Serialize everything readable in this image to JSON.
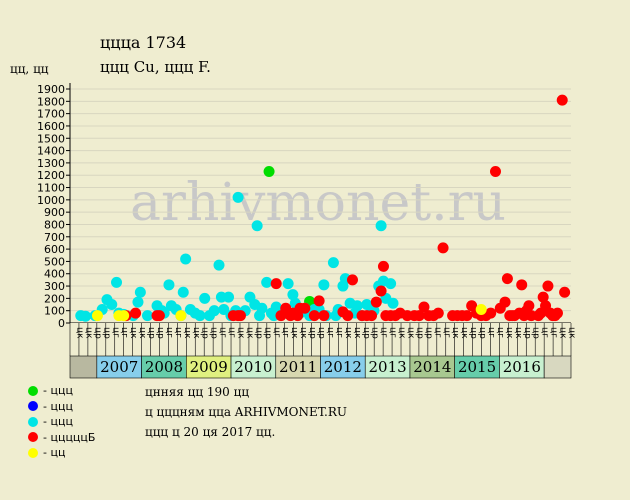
{
  "header": {
    "title": "ццца 1734",
    "subtitle": "ццц Cu, ццц F.",
    "ylabel": "цц, цц"
  },
  "info": {
    "line1": "цнняя цц 190 цц",
    "line2": "ц цццням цца ARHIVMONET.RU",
    "line3": "ццц ц 20 ця 2017 цц."
  },
  "legend": [
    {
      "label": "- ццц",
      "color": "#00dd00"
    },
    {
      "label": "- ццц",
      "color": "#0000ff"
    },
    {
      "label": "- ццц",
      "color": "#00e5e5"
    },
    {
      "label": "- цццццБ",
      "color": "#ff0000"
    },
    {
      "label": "- цц",
      "color": "#ffff00"
    }
  ],
  "watermark": "arhivmonet.ru",
  "chart_data": {
    "type": "scatter",
    "ylim": [
      0,
      1900
    ],
    "yticks": [
      0,
      100,
      200,
      300,
      400,
      500,
      600,
      700,
      800,
      900,
      1000,
      1100,
      1200,
      1300,
      1400,
      1500,
      1600,
      1700,
      1800,
      1900
    ],
    "grid": true,
    "years": [
      {
        "label": "2007",
        "color": "#87ceeb"
      },
      {
        "label": "2008",
        "color": "#66cdaa"
      },
      {
        "label": "2009",
        "color": "#e0f080"
      },
      {
        "label": "2010",
        "color": "#c8f0d0"
      },
      {
        "label": "2011",
        "color": "#d8d8b0"
      },
      {
        "label": "2012",
        "color": "#87ceeb"
      },
      {
        "label": "2013",
        "color": "#c8f0d0"
      },
      {
        "label": "2014",
        "color": "#a8c890"
      },
      {
        "label": "2015",
        "color": "#66cdaa"
      },
      {
        "label": "2016",
        "color": "#c8f0d0"
      }
    ],
    "month_labels": [
      "цк",
      "цк",
      "цр",
      "цр",
      "цг",
      "цг",
      "цк",
      "цк",
      "цр",
      "цр",
      "цг",
      "цг",
      "цк",
      "цк",
      "цр",
      "цр",
      "цг",
      "цг",
      "цк",
      "цк",
      "цр",
      "цр",
      "цг",
      "цг",
      "цк",
      "цк",
      "цр",
      "цр",
      "цг",
      "цг",
      "цк",
      "цк",
      "цр",
      "цр",
      "цг",
      "цг",
      "цк",
      "цк",
      "цр",
      "цр",
      "цг",
      "цг",
      "цк",
      "цк",
      "цр",
      "цр",
      "цг",
      "цг",
      "цк",
      "цк",
      "цр",
      "цр",
      "цг",
      "цг",
      "цк",
      "цк"
    ],
    "series": [
      {
        "color": "#00dd00",
        "points": [
          [
            0.405,
            1230
          ],
          [
            0.49,
            175
          ]
        ]
      },
      {
        "color": "#0000ff",
        "points": []
      },
      {
        "color": "#00e5e5",
        "points": [
          [
            0.01,
            60
          ],
          [
            0.02,
            55
          ],
          [
            0.04,
            60
          ],
          [
            0.055,
            110
          ],
          [
            0.065,
            190
          ],
          [
            0.075,
            150
          ],
          [
            0.085,
            330
          ],
          [
            0.09,
            80
          ],
          [
            0.1,
            70
          ],
          [
            0.12,
            60
          ],
          [
            0.13,
            170
          ],
          [
            0.135,
            250
          ],
          [
            0.15,
            60
          ],
          [
            0.17,
            140
          ],
          [
            0.18,
            100
          ],
          [
            0.185,
            80
          ],
          [
            0.195,
            310
          ],
          [
            0.2,
            140
          ],
          [
            0.21,
            110
          ],
          [
            0.22,
            60
          ],
          [
            0.225,
            250
          ],
          [
            0.23,
            520
          ],
          [
            0.24,
            110
          ],
          [
            0.25,
            80
          ],
          [
            0.26,
            60
          ],
          [
            0.27,
            200
          ],
          [
            0.28,
            60
          ],
          [
            0.29,
            100
          ],
          [
            0.3,
            470
          ],
          [
            0.305,
            210
          ],
          [
            0.31,
            110
          ],
          [
            0.32,
            210
          ],
          [
            0.325,
            60
          ],
          [
            0.335,
            100
          ],
          [
            0.34,
            1020
          ],
          [
            0.345,
            80
          ],
          [
            0.355,
            100
          ],
          [
            0.365,
            210
          ],
          [
            0.375,
            150
          ],
          [
            0.38,
            790
          ],
          [
            0.385,
            60
          ],
          [
            0.39,
            120
          ],
          [
            0.4,
            330
          ],
          [
            0.41,
            80
          ],
          [
            0.415,
            60
          ],
          [
            0.42,
            130
          ],
          [
            0.43,
            100
          ],
          [
            0.44,
            80
          ],
          [
            0.445,
            320
          ],
          [
            0.455,
            230
          ],
          [
            0.46,
            160
          ],
          [
            0.47,
            80
          ],
          [
            0.48,
            120
          ],
          [
            0.49,
            60
          ],
          [
            0.5,
            110
          ],
          [
            0.51,
            110
          ],
          [
            0.52,
            310
          ],
          [
            0.525,
            60
          ],
          [
            0.54,
            490
          ],
          [
            0.545,
            60
          ],
          [
            0.55,
            110
          ],
          [
            0.56,
            300
          ],
          [
            0.565,
            360
          ],
          [
            0.575,
            160
          ],
          [
            0.585,
            80
          ],
          [
            0.59,
            140
          ],
          [
            0.6,
            60
          ],
          [
            0.61,
            150
          ],
          [
            0.62,
            120
          ],
          [
            0.625,
            100
          ],
          [
            0.635,
            300
          ],
          [
            0.64,
            790
          ],
          [
            0.645,
            340
          ],
          [
            0.65,
            200
          ],
          [
            0.66,
            320
          ],
          [
            0.665,
            160
          ]
        ]
      },
      {
        "color": "#ff0000",
        "points": [
          [
            0.105,
            60
          ],
          [
            0.125,
            80
          ],
          [
            0.17,
            60
          ],
          [
            0.175,
            60
          ],
          [
            0.33,
            60
          ],
          [
            0.34,
            60
          ],
          [
            0.345,
            60
          ],
          [
            0.42,
            320
          ],
          [
            0.43,
            60
          ],
          [
            0.44,
            120
          ],
          [
            0.45,
            60
          ],
          [
            0.455,
            80
          ],
          [
            0.465,
            60
          ],
          [
            0.47,
            120
          ],
          [
            0.48,
            120
          ],
          [
            0.5,
            60
          ],
          [
            0.51,
            180
          ],
          [
            0.52,
            60
          ],
          [
            0.56,
            90
          ],
          [
            0.57,
            60
          ],
          [
            0.58,
            350
          ],
          [
            0.6,
            60
          ],
          [
            0.61,
            60
          ],
          [
            0.62,
            60
          ],
          [
            0.63,
            170
          ],
          [
            0.64,
            260
          ],
          [
            0.645,
            460
          ],
          [
            0.65,
            60
          ],
          [
            0.66,
            60
          ],
          [
            0.67,
            60
          ],
          [
            0.68,
            80
          ],
          [
            0.695,
            60
          ],
          [
            0.71,
            60
          ],
          [
            0.72,
            60
          ],
          [
            0.73,
            130
          ],
          [
            0.74,
            60
          ],
          [
            0.75,
            60
          ],
          [
            0.76,
            80
          ],
          [
            0.77,
            610
          ],
          [
            0.79,
            60
          ],
          [
            0.8,
            60
          ],
          [
            0.81,
            60
          ],
          [
            0.82,
            60
          ],
          [
            0.83,
            140
          ],
          [
            0.84,
            80
          ],
          [
            0.85,
            60
          ],
          [
            0.86,
            60
          ],
          [
            0.87,
            80
          ],
          [
            0.88,
            1230
          ],
          [
            0.89,
            120
          ],
          [
            0.9,
            170
          ],
          [
            0.905,
            360
          ],
          [
            0.91,
            60
          ],
          [
            0.915,
            60
          ],
          [
            0.92,
            60
          ],
          [
            0.93,
            80
          ],
          [
            0.935,
            310
          ],
          [
            0.94,
            60
          ],
          [
            0.945,
            100
          ],
          [
            0.95,
            140
          ],
          [
            0.955,
            60
          ],
          [
            0.97,
            60
          ],
          [
            0.975,
            80
          ],
          [
            0.98,
            210
          ],
          [
            0.985,
            140
          ],
          [
            0.99,
            300
          ],
          [
            0.995,
            80
          ],
          [
            1.0,
            60
          ],
          [
            1.005,
            60
          ],
          [
            1.01,
            80
          ],
          [
            1.02,
            1810
          ],
          [
            1.025,
            250
          ]
        ]
      },
      {
        "color": "#ffff00",
        "points": [
          [
            0.045,
            60
          ],
          [
            0.09,
            60
          ],
          [
            0.1,
            60
          ],
          [
            0.22,
            60
          ],
          [
            0.85,
            110
          ]
        ]
      }
    ]
  }
}
